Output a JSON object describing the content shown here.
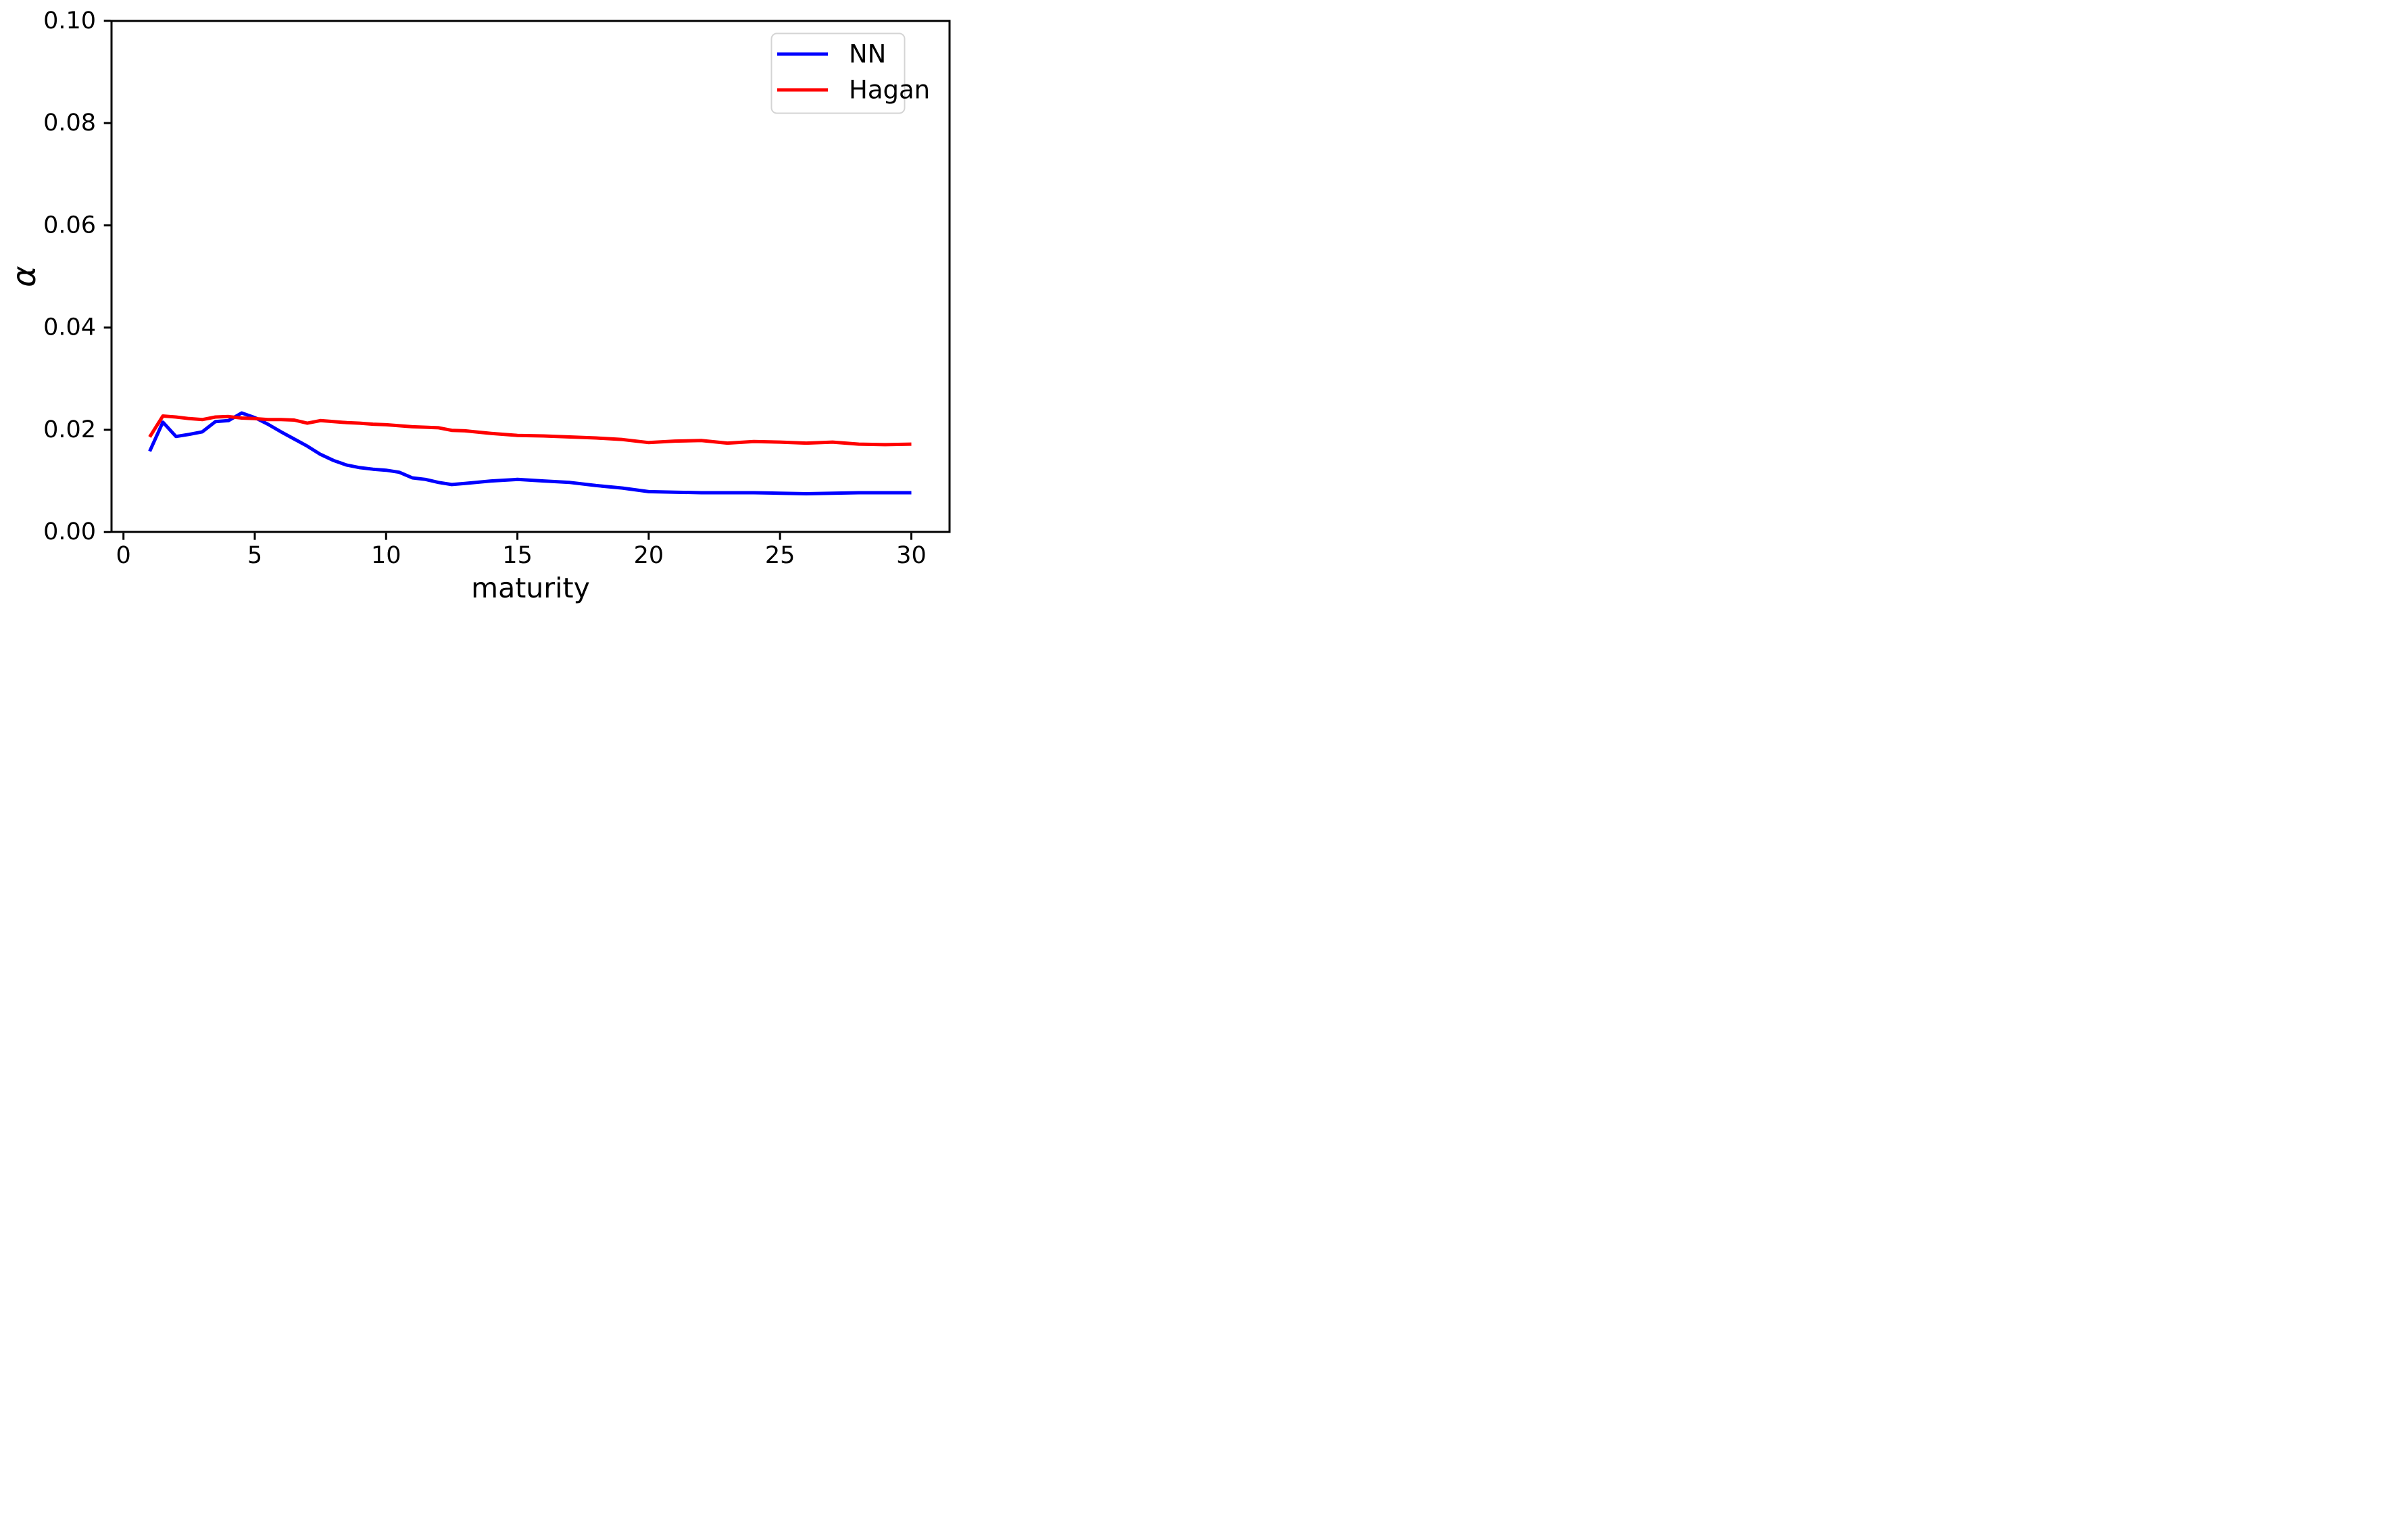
{
  "chart_data": {
    "type": "line",
    "title": "",
    "xlabel": "maturity",
    "ylabel": "α",
    "xlim": [
      -0.45,
      31.45
    ],
    "ylim": [
      0.0,
      0.1
    ],
    "x_ticks": [
      0,
      5,
      10,
      15,
      20,
      25,
      30
    ],
    "x_tick_labels": [
      "0",
      "5",
      "10",
      "15",
      "20",
      "25",
      "30"
    ],
    "y_ticks": [
      0.0,
      0.02,
      0.04,
      0.06,
      0.08,
      0.1
    ],
    "y_tick_labels": [
      "0.00",
      "0.02",
      "0.04",
      "0.06",
      "0.08",
      "0.10"
    ],
    "grid": false,
    "legend_position": "upper right",
    "background_color": "#ffffff",
    "x": [
      1,
      1.5,
      2,
      2.5,
      3,
      3.5,
      4,
      4.5,
      5,
      5.5,
      6,
      6.5,
      7,
      7.5,
      8,
      8.5,
      9,
      9.5,
      10,
      10.5,
      11,
      11.5,
      12,
      12.5,
      13,
      14,
      15,
      16,
      17,
      18,
      19,
      20,
      21,
      22,
      23,
      24,
      25,
      26,
      27,
      28,
      29,
      30
    ],
    "series": [
      {
        "name": "NN",
        "color": "#0000ff",
        "values": [
          0.0158,
          0.0215,
          0.0187,
          0.0191,
          0.0196,
          0.0216,
          0.0218,
          0.0233,
          0.0224,
          0.0211,
          0.0196,
          0.0182,
          0.0168,
          0.0152,
          0.014,
          0.0131,
          0.0126,
          0.0123,
          0.0121,
          0.0117,
          0.0106,
          0.0103,
          0.0097,
          0.0093,
          0.0095,
          0.01,
          0.0103,
          0.01,
          0.0097,
          0.0091,
          0.0086,
          0.0079,
          0.0078,
          0.0077,
          0.0077,
          0.0077,
          0.0076,
          0.0075,
          0.0076,
          0.0077,
          0.0077,
          0.0077
        ]
      },
      {
        "name": "Hagan",
        "color": "#ff0000",
        "values": [
          0.0186,
          0.0227,
          0.0225,
          0.0222,
          0.022,
          0.0225,
          0.0226,
          0.0223,
          0.0222,
          0.022,
          0.022,
          0.0219,
          0.0213,
          0.0218,
          0.0216,
          0.0214,
          0.0213,
          0.0211,
          0.021,
          0.0208,
          0.0206,
          0.0205,
          0.0204,
          0.0199,
          0.0198,
          0.0193,
          0.0189,
          0.0188,
          0.0186,
          0.0184,
          0.0181,
          0.0175,
          0.0178,
          0.0179,
          0.0174,
          0.0177,
          0.0176,
          0.0174,
          0.0176,
          0.0172,
          0.0171,
          0.0172
        ]
      }
    ]
  }
}
